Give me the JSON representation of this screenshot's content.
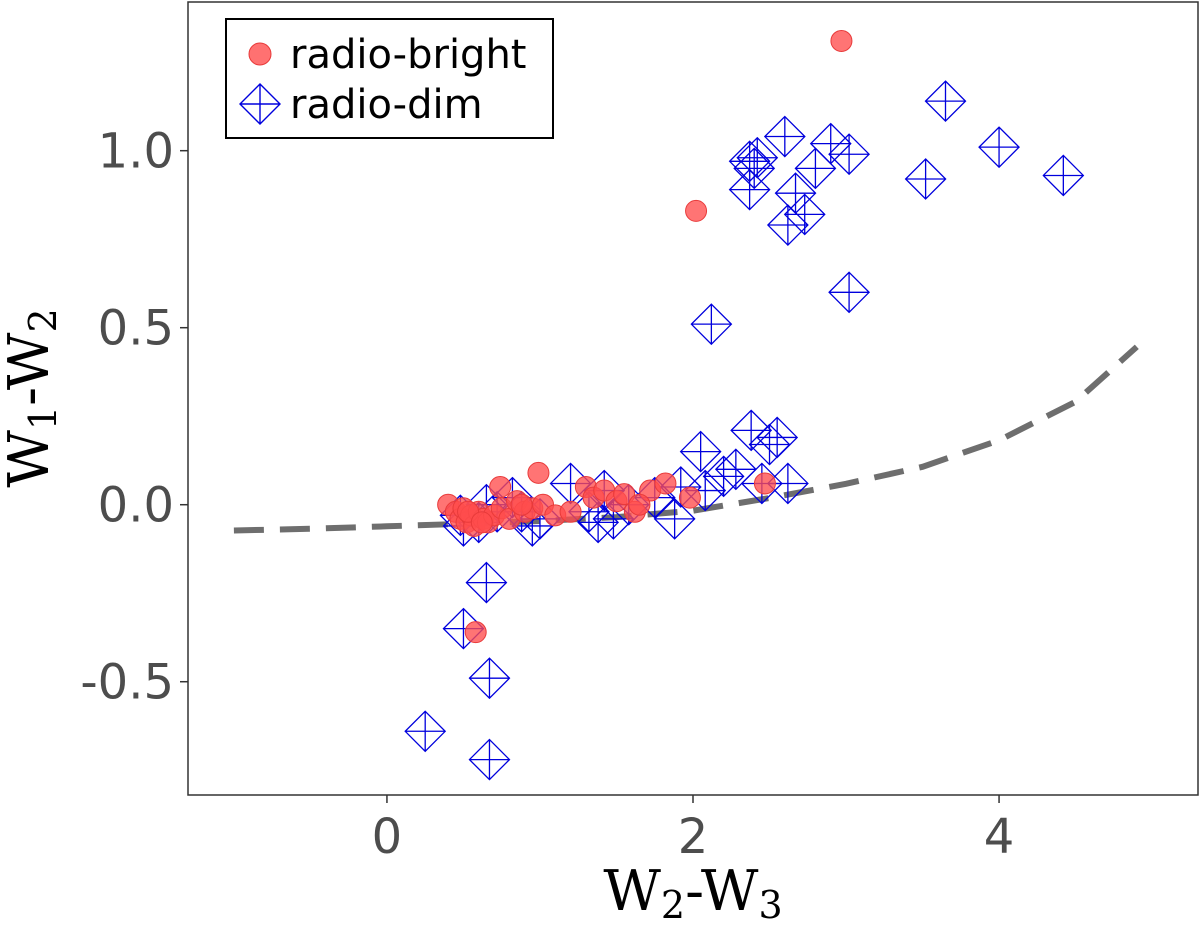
{
  "chart_data": {
    "type": "scatter",
    "title": "",
    "xlabel": {
      "base": "W",
      "sub1": "2",
      "mid": "-W",
      "sub2": "3"
    },
    "ylabel": {
      "base": "W",
      "sub1": "1",
      "mid": "-W",
      "sub2": "2"
    },
    "xlim": [
      -1.3,
      5.3
    ],
    "ylim": [
      -0.82,
      1.42
    ],
    "xticks": [
      0,
      2,
      4
    ],
    "xtick_labels": [
      "0",
      "2",
      "4"
    ],
    "yticks": [
      -0.5,
      0.0,
      0.5,
      1.0
    ],
    "ytick_labels": [
      "-0.5",
      "0.0",
      "0.5",
      "1.0"
    ],
    "grid": false,
    "legend_position": "top-left",
    "colors": {
      "radio_bright": "#ff4d4d",
      "radio_dim": "#0000dd",
      "curve": "#6e6e6e",
      "axis_text": "#4d4d4d"
    },
    "series": [
      {
        "name": "radio-bright",
        "marker": "circle",
        "points": [
          [
            2.97,
            1.31
          ],
          [
            2.02,
            0.83
          ],
          [
            0.58,
            -0.36
          ],
          [
            0.99,
            0.09
          ],
          [
            0.74,
            0.05
          ],
          [
            0.4,
            0.0
          ],
          [
            0.45,
            -0.02
          ],
          [
            0.48,
            -0.04
          ],
          [
            0.5,
            -0.01
          ],
          [
            0.52,
            -0.05
          ],
          [
            0.55,
            -0.03
          ],
          [
            0.57,
            -0.06
          ],
          [
            0.6,
            -0.02
          ],
          [
            0.63,
            -0.04
          ],
          [
            0.66,
            -0.05
          ],
          [
            0.7,
            -0.03
          ],
          [
            0.75,
            -0.01
          ],
          [
            0.8,
            -0.04
          ],
          [
            0.85,
            0.01
          ],
          [
            0.9,
            -0.02
          ],
          [
            0.95,
            -0.01
          ],
          [
            1.02,
            0.0
          ],
          [
            1.1,
            -0.03
          ],
          [
            1.2,
            -0.02
          ],
          [
            1.3,
            0.05
          ],
          [
            1.35,
            0.02
          ],
          [
            1.42,
            0.04
          ],
          [
            1.5,
            0.01
          ],
          [
            1.55,
            0.03
          ],
          [
            1.62,
            -0.02
          ],
          [
            1.72,
            0.04
          ],
          [
            1.82,
            0.06
          ],
          [
            1.98,
            0.02
          ],
          [
            2.47,
            0.06
          ],
          [
            1.65,
            0.0
          ],
          [
            0.53,
            -0.02
          ],
          [
            0.62,
            -0.05
          ],
          [
            0.88,
            0.0
          ]
        ]
      },
      {
        "name": "radio-dim",
        "marker": "diamond-cross",
        "points": [
          [
            3.65,
            1.14
          ],
          [
            2.6,
            1.04
          ],
          [
            2.9,
            1.02
          ],
          [
            4.0,
            1.01
          ],
          [
            3.02,
            0.99
          ],
          [
            2.37,
            0.97
          ],
          [
            2.42,
            0.98
          ],
          [
            2.4,
            0.95
          ],
          [
            2.8,
            0.95
          ],
          [
            4.42,
            0.93
          ],
          [
            3.52,
            0.92
          ],
          [
            2.67,
            0.88
          ],
          [
            2.37,
            0.89
          ],
          [
            2.73,
            0.82
          ],
          [
            2.62,
            0.79
          ],
          [
            3.02,
            0.6
          ],
          [
            2.12,
            0.51
          ],
          [
            2.38,
            0.21
          ],
          [
            2.55,
            0.19
          ],
          [
            2.5,
            0.17
          ],
          [
            2.05,
            0.15
          ],
          [
            2.28,
            0.1
          ],
          [
            2.2,
            0.08
          ],
          [
            2.45,
            0.06
          ],
          [
            2.62,
            0.06
          ],
          [
            2.08,
            0.04
          ],
          [
            1.92,
            0.05
          ],
          [
            1.75,
            0.02
          ],
          [
            1.58,
            0.0
          ],
          [
            1.42,
            0.04
          ],
          [
            1.2,
            0.06
          ],
          [
            1.32,
            -0.02
          ],
          [
            1.48,
            -0.04
          ],
          [
            1.88,
            -0.04
          ],
          [
            1.0,
            -0.04
          ],
          [
            0.95,
            -0.06
          ],
          [
            0.82,
            0.02
          ],
          [
            0.72,
            -0.02
          ],
          [
            0.6,
            -0.05
          ],
          [
            0.48,
            -0.03
          ],
          [
            0.5,
            -0.06
          ],
          [
            0.65,
            0.0
          ],
          [
            0.88,
            -0.02
          ],
          [
            1.38,
            -0.05
          ],
          [
            0.65,
            -0.22
          ],
          [
            0.5,
            -0.35
          ],
          [
            0.67,
            -0.49
          ],
          [
            0.25,
            -0.64
          ],
          [
            0.67,
            -0.72
          ]
        ]
      }
    ],
    "curve": {
      "name": "dashed reference curve",
      "style": "dashed",
      "points": [
        [
          -1.0,
          -0.073
        ],
        [
          -0.5,
          -0.068
        ],
        [
          0.0,
          -0.061
        ],
        [
          0.5,
          -0.054
        ],
        [
          1.0,
          -0.046
        ],
        [
          1.5,
          -0.035
        ],
        [
          2.0,
          -0.017
        ],
        [
          2.5,
          0.019
        ],
        [
          3.0,
          0.059
        ],
        [
          3.5,
          0.107
        ],
        [
          4.0,
          0.182
        ],
        [
          4.5,
          0.291
        ],
        [
          4.9,
          0.446
        ]
      ]
    }
  }
}
